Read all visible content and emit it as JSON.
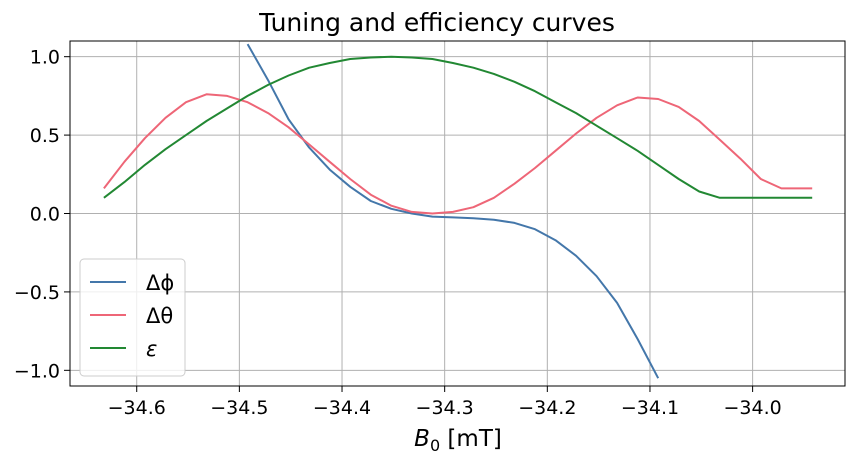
{
  "chart_data": {
    "type": "line",
    "title": "Tuning and efficiency curves",
    "xlabel_main": "B",
    "xlabel_sub": "0",
    "xlabel_unit": " [mT]",
    "ylabel": "",
    "xlim": [
      -34.665,
      -33.91
    ],
    "ylim": [
      -1.1,
      1.1
    ],
    "grid": true,
    "legend_position": "lower-left",
    "xticks": [
      -34.6,
      -34.5,
      -34.4,
      -34.3,
      -34.2,
      -34.1,
      -34.0
    ],
    "xtick_labels": [
      "−34.6",
      "−34.5",
      "−34.4",
      "−34.3",
      "−34.2",
      "−34.1",
      "−34.0"
    ],
    "yticks": [
      -1.0,
      -0.5,
      0.0,
      0.5,
      1.0
    ],
    "ytick_labels": [
      "−1.0",
      "−0.5",
      "0.0",
      "0.5",
      "1.0"
    ],
    "x": [
      -34.632,
      -34.612,
      -34.592,
      -34.572,
      -34.552,
      -34.532,
      -34.512,
      -34.492,
      -34.472,
      -34.452,
      -34.432,
      -34.412,
      -34.392,
      -34.372,
      -34.352,
      -34.332,
      -34.312,
      -34.292,
      -34.272,
      -34.252,
      -34.232,
      -34.212,
      -34.192,
      -34.172,
      -34.152,
      -34.132,
      -34.112,
      -34.092,
      -34.072,
      -34.052,
      -34.032,
      -34.012,
      -33.992,
      -33.972,
      -33.952,
      -33.942
    ],
    "series": [
      {
        "name": "Δϕ",
        "color": "#4477aa",
        "values": [
          null,
          null,
          null,
          null,
          null,
          null,
          null,
          1.08,
          0.85,
          0.6,
          0.42,
          0.28,
          0.17,
          0.08,
          0.03,
          0.0,
          -0.02,
          -0.025,
          -0.03,
          -0.04,
          -0.06,
          -0.1,
          -0.17,
          -0.27,
          -0.4,
          -0.57,
          -0.8,
          -1.05,
          null,
          null,
          null,
          null,
          null,
          null,
          null,
          null
        ]
      },
      {
        "name": "Δθ",
        "color": "#ee6677",
        "values": [
          0.16,
          0.33,
          0.48,
          0.61,
          0.71,
          0.76,
          0.75,
          0.71,
          0.64,
          0.55,
          0.44,
          0.33,
          0.22,
          0.12,
          0.05,
          0.01,
          0.0,
          0.01,
          0.04,
          0.1,
          0.19,
          0.29,
          0.4,
          0.51,
          0.61,
          0.69,
          0.74,
          0.73,
          0.68,
          0.59,
          0.47,
          0.35,
          0.22,
          0.16,
          0.16,
          0.16
        ]
      },
      {
        "name": "ε",
        "color": "#228833",
        "values": [
          0.1,
          0.2,
          0.31,
          0.41,
          0.5,
          0.59,
          0.67,
          0.75,
          0.82,
          0.88,
          0.93,
          0.96,
          0.985,
          0.995,
          1.0,
          0.995,
          0.985,
          0.96,
          0.93,
          0.89,
          0.84,
          0.78,
          0.71,
          0.64,
          0.56,
          0.48,
          0.4,
          0.31,
          0.22,
          0.14,
          0.1,
          0.1,
          0.1,
          0.1,
          0.1,
          0.1
        ]
      }
    ],
    "legend_labels": [
      "Δϕ",
      "Δθ",
      "ε"
    ]
  }
}
